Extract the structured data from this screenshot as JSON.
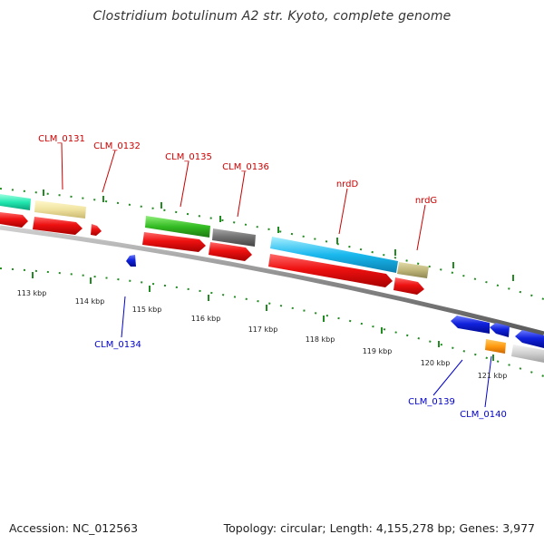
{
  "title": "Clostridium botulinum A2 str. Kyoto, complete genome",
  "footer": {
    "accession": "Accession: NC_012563",
    "stats": "Topology: circular; Length: 4,155,278 bp; Genes: 3,977"
  },
  "ticks": [
    "113 kbp",
    "114 kbp",
    "115 kbp",
    "116 kbp",
    "117 kbp",
    "118 kbp",
    "119 kbp",
    "120 kbp",
    "121 kbp"
  ],
  "gene_labels": {
    "clm0131": "CLM_0131",
    "clm0132": "CLM_0132",
    "clm0135": "CLM_0135",
    "clm0136": "CLM_0136",
    "nrdD": "nrdD",
    "nrdG": "nrdG",
    "clm0134": "CLM_0134",
    "clm0139": "CLM_0139",
    "clm0140": "CLM_0140"
  },
  "colors": {
    "forward_label": "#cc0000",
    "reverse_label": "#0000cc",
    "tick_green": "#228b22",
    "backbone": "#8a8a8a",
    "cds_red": "#ee1111",
    "cds_blue": "#1122dd"
  }
}
